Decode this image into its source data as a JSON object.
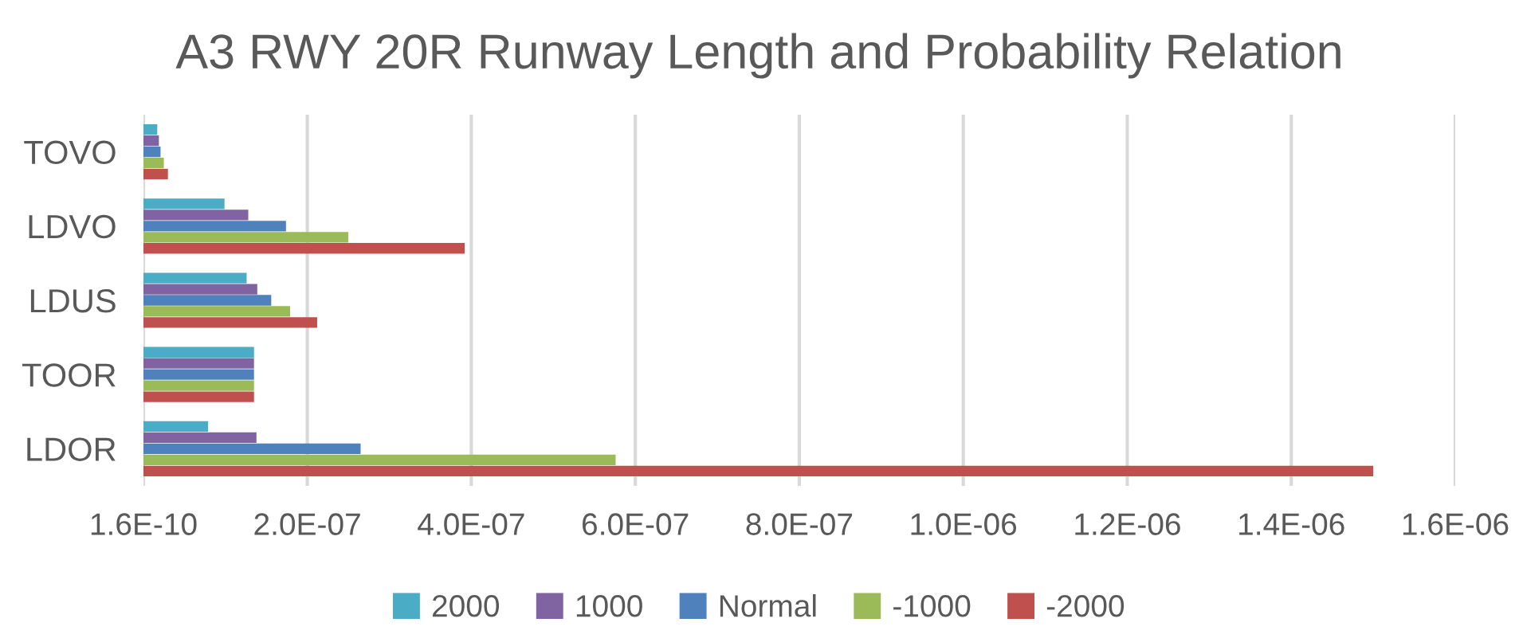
{
  "chart_data": {
    "type": "bar",
    "orientation": "horizontal",
    "title": "A3 RWY 20R Runway Length and Probability Relation",
    "categories": [
      "TOVO",
      "LDVO",
      "LDUS",
      "TOOR",
      "LDOR"
    ],
    "series": [
      {
        "name": "2000",
        "color": "#4bacc6",
        "values": [
          1.7e-08,
          9.9e-08,
          1.26e-07,
          1.35e-07,
          7.9e-08
        ]
      },
      {
        "name": "1000",
        "color": "#8064a2",
        "values": [
          1.9e-08,
          1.28e-07,
          1.39e-07,
          1.35e-07,
          1.38e-07
        ]
      },
      {
        "name": "Normal",
        "color": "#4f81bd",
        "values": [
          2.1e-08,
          1.74e-07,
          1.56e-07,
          1.35e-07,
          2.65e-07
        ]
      },
      {
        "name": "-1000",
        "color": "#9bbb59",
        "values": [
          2.5e-08,
          2.5e-07,
          1.79e-07,
          1.35e-07,
          5.76e-07
        ]
      },
      {
        "name": "-2000",
        "color": "#c0504d",
        "values": [
          3e-08,
          3.92e-07,
          2.12e-07,
          1.35e-07,
          1.5e-06
        ]
      }
    ],
    "xlim": [
      1.6e-10,
      1.6e-06
    ],
    "xticks": [
      {
        "value": 1.6e-10,
        "label": "1.6E-10"
      },
      {
        "value": 2e-07,
        "label": "2.0E-07"
      },
      {
        "value": 4e-07,
        "label": "4.0E-07"
      },
      {
        "value": 6e-07,
        "label": "6.0E-07"
      },
      {
        "value": 8e-07,
        "label": "8.0E-07"
      },
      {
        "value": 1e-06,
        "label": "1.0E-06"
      },
      {
        "value": 1.2e-06,
        "label": "1.2E-06"
      },
      {
        "value": 1.4e-06,
        "label": "1.4E-06"
      },
      {
        "value": 1.6e-06,
        "label": "1.6E-06"
      }
    ],
    "grid": "x",
    "legend": "bottom"
  }
}
